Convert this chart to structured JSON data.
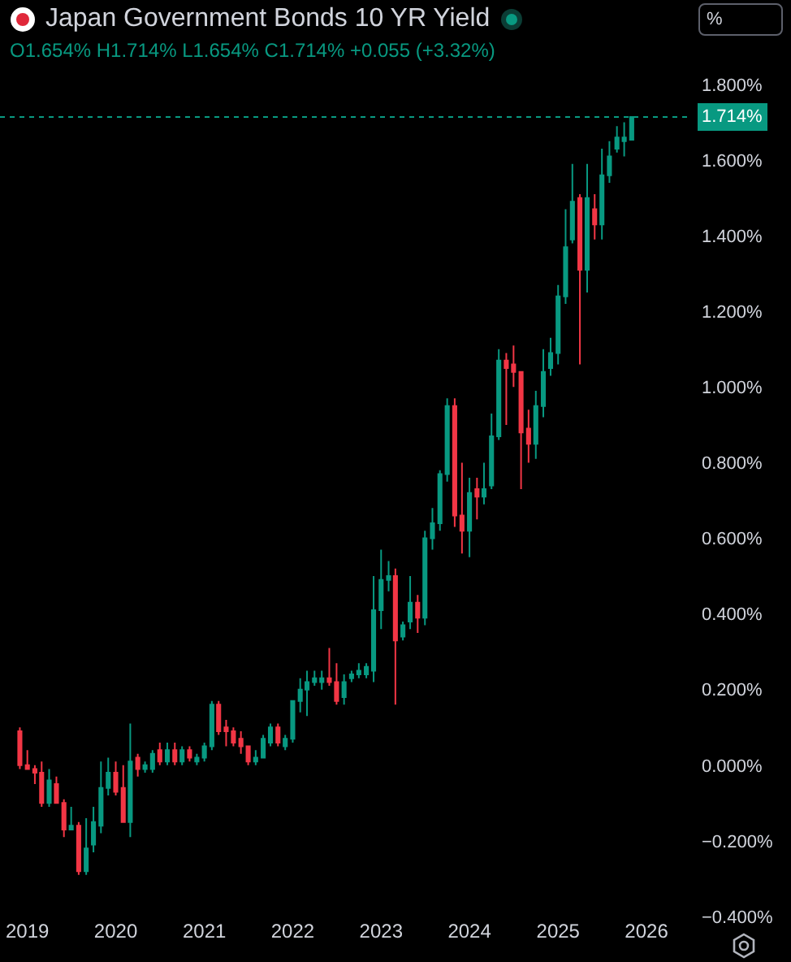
{
  "chart_data": {
    "type": "candlestick",
    "title": "Japan Government Bonds 10 YR Yield",
    "subtitle": "O1.654% H1.714% L1.654% C1.714% +0.055 (+3.32%)",
    "annotations": [
      "%"
    ],
    "x": [
      "2018-12",
      "2019-01",
      "2019-02",
      "2019-03",
      "2019-04",
      "2019-05",
      "2019-06",
      "2019-07",
      "2019-08",
      "2019-09",
      "2019-10",
      "2019-11",
      "2019-12",
      "2020-01",
      "2020-02",
      "2020-03",
      "2020-04",
      "2020-05",
      "2020-06",
      "2020-07",
      "2020-08",
      "2020-09",
      "2020-10",
      "2020-11",
      "2020-12",
      "2021-01",
      "2021-02",
      "2021-03",
      "2021-04",
      "2021-05",
      "2021-06",
      "2021-07",
      "2021-08",
      "2021-09",
      "2021-10",
      "2021-11",
      "2021-12",
      "2022-01",
      "2022-02",
      "2022-03",
      "2022-04",
      "2022-05",
      "2022-06",
      "2022-07",
      "2022-08",
      "2022-09",
      "2022-10",
      "2022-11",
      "2022-12",
      "2023-01",
      "2023-02",
      "2023-03",
      "2023-04",
      "2023-05",
      "2023-06",
      "2023-07",
      "2023-08",
      "2023-09",
      "2023-10",
      "2023-11",
      "2023-12",
      "2024-01",
      "2024-02",
      "2024-03",
      "2024-04",
      "2024-05",
      "2024-06",
      "2024-07",
      "2024-08",
      "2024-09",
      "2024-10",
      "2024-11",
      "2024-12",
      "2025-01",
      "2025-02",
      "2025-03",
      "2025-04",
      "2025-05",
      "2025-06",
      "2025-07",
      "2025-08",
      "2025-09",
      "2025-10",
      "2025-11"
    ],
    "ohlc": [
      [
        0.09,
        0.1,
        -0.01,
        0.0
      ],
      [
        0.0,
        0.04,
        -0.01,
        -0.01
      ],
      [
        -0.01,
        0.0,
        -0.05,
        -0.02
      ],
      [
        -0.02,
        0.01,
        -0.11,
        -0.1
      ],
      [
        -0.1,
        -0.01,
        -0.11,
        -0.04
      ],
      [
        -0.05,
        -0.03,
        -0.1,
        -0.1
      ],
      [
        -0.1,
        -0.09,
        -0.19,
        -0.17
      ],
      [
        -0.17,
        -0.11,
        -0.17,
        -0.16
      ],
      [
        -0.16,
        -0.15,
        -0.29,
        -0.28
      ],
      [
        -0.28,
        -0.14,
        -0.29,
        -0.22
      ],
      [
        -0.21,
        -0.11,
        -0.23,
        -0.15
      ],
      [
        -0.16,
        0.01,
        -0.18,
        -0.06
      ],
      [
        -0.06,
        0.02,
        -0.08,
        -0.02
      ],
      [
        -0.02,
        0.01,
        -0.08,
        -0.07
      ],
      [
        -0.06,
        0.0,
        -0.15,
        -0.15
      ],
      [
        -0.15,
        0.11,
        -0.19,
        0.01
      ],
      [
        0.02,
        0.03,
        -0.03,
        -0.01
      ],
      [
        -0.01,
        0.01,
        -0.02,
        0.0
      ],
      [
        -0.01,
        0.04,
        -0.02,
        0.03
      ],
      [
        0.04,
        0.06,
        0.0,
        0.01
      ],
      [
        0.01,
        0.06,
        0.0,
        0.04
      ],
      [
        0.04,
        0.06,
        0.0,
        0.01
      ],
      [
        0.01,
        0.05,
        0.0,
        0.04
      ],
      [
        0.04,
        0.05,
        0.01,
        0.02
      ],
      [
        0.01,
        0.03,
        0.0,
        0.02
      ],
      [
        0.02,
        0.06,
        0.01,
        0.05
      ],
      [
        0.05,
        0.17,
        0.04,
        0.16
      ],
      [
        0.16,
        0.17,
        0.08,
        0.09
      ],
      [
        0.1,
        0.12,
        0.05,
        0.09
      ],
      [
        0.09,
        0.1,
        0.05,
        0.06
      ],
      [
        0.07,
        0.09,
        0.03,
        0.05
      ],
      [
        0.05,
        0.05,
        0.0,
        0.01
      ],
      [
        0.01,
        0.04,
        0.0,
        0.02
      ],
      [
        0.02,
        0.08,
        0.02,
        0.07
      ],
      [
        0.06,
        0.11,
        0.05,
        0.1
      ],
      [
        0.1,
        0.11,
        0.05,
        0.06
      ],
      [
        0.05,
        0.08,
        0.04,
        0.07
      ],
      [
        0.07,
        0.17,
        0.06,
        0.17
      ],
      [
        0.17,
        0.23,
        0.14,
        0.2
      ],
      [
        0.2,
        0.25,
        0.13,
        0.22
      ],
      [
        0.22,
        0.25,
        0.21,
        0.23
      ],
      [
        0.22,
        0.25,
        0.2,
        0.23
      ],
      [
        0.23,
        0.31,
        0.21,
        0.22
      ],
      [
        0.22,
        0.27,
        0.16,
        0.17
      ],
      [
        0.18,
        0.24,
        0.16,
        0.22
      ],
      [
        0.23,
        0.25,
        0.22,
        0.24
      ],
      [
        0.24,
        0.27,
        0.23,
        0.25
      ],
      [
        0.24,
        0.27,
        0.23,
        0.26
      ],
      [
        0.25,
        0.5,
        0.22,
        0.41
      ],
      [
        0.41,
        0.57,
        0.36,
        0.49
      ],
      [
        0.49,
        0.54,
        0.46,
        0.5
      ],
      [
        0.5,
        0.52,
        0.16,
        0.33
      ],
      [
        0.34,
        0.38,
        0.33,
        0.37
      ],
      [
        0.38,
        0.5,
        0.36,
        0.43
      ],
      [
        0.43,
        0.45,
        0.35,
        0.39
      ],
      [
        0.39,
        0.62,
        0.37,
        0.6
      ],
      [
        0.6,
        0.68,
        0.57,
        0.64
      ],
      [
        0.64,
        0.78,
        0.62,
        0.77
      ],
      [
        0.77,
        0.97,
        0.75,
        0.95
      ],
      [
        0.95,
        0.97,
        0.63,
        0.66
      ],
      [
        0.66,
        0.8,
        0.56,
        0.62
      ],
      [
        0.62,
        0.76,
        0.55,
        0.72
      ],
      [
        0.73,
        0.76,
        0.65,
        0.71
      ],
      [
        0.71,
        0.8,
        0.69,
        0.73
      ],
      [
        0.74,
        0.93,
        0.73,
        0.87
      ],
      [
        0.87,
        1.1,
        0.86,
        1.07
      ],
      [
        1.07,
        1.09,
        0.9,
        1.05
      ],
      [
        1.06,
        1.11,
        1.0,
        1.04
      ],
      [
        1.04,
        1.04,
        0.73,
        0.88
      ],
      [
        0.89,
        0.94,
        0.8,
        0.85
      ],
      [
        0.85,
        0.99,
        0.81,
        0.95
      ],
      [
        0.95,
        1.1,
        0.92,
        1.04
      ],
      [
        1.05,
        1.13,
        1.03,
        1.09
      ],
      [
        1.09,
        1.27,
        1.06,
        1.24
      ],
      [
        1.24,
        1.47,
        1.22,
        1.37
      ],
      [
        1.39,
        1.59,
        1.38,
        1.49
      ],
      [
        1.5,
        1.51,
        1.06,
        1.31
      ],
      [
        1.31,
        1.59,
        1.25,
        1.5
      ],
      [
        1.47,
        1.51,
        1.39,
        1.43
      ],
      [
        1.43,
        1.63,
        1.39,
        1.56
      ],
      [
        1.56,
        1.65,
        1.54,
        1.61
      ],
      [
        1.63,
        1.69,
        1.62,
        1.66
      ],
      [
        1.65,
        1.7,
        1.61,
        1.66
      ],
      [
        1.654,
        1.714,
        1.654,
        1.714
      ]
    ],
    "colors": [
      "#f23645",
      "#f23645",
      "#f23645",
      "#f23645",
      "#089981",
      "#f23645",
      "#f23645",
      "#089981",
      "#f23645",
      "#089981",
      "#089981",
      "#089981",
      "#089981",
      "#f23645",
      "#f23645",
      "#089981",
      "#f23645",
      "#089981",
      "#089981",
      "#f23645",
      "#089981",
      "#f23645",
      "#089981",
      "#f23645",
      "#089981",
      "#089981",
      "#089981",
      "#f23645",
      "#f23645",
      "#f23645",
      "#f23645",
      "#f23645",
      "#089981",
      "#089981",
      "#089981",
      "#f23645",
      "#089981",
      "#089981",
      "#089981",
      "#089981",
      "#089981",
      "#089981",
      "#f23645",
      "#f23645",
      "#089981",
      "#089981",
      "#089981",
      "#089981",
      "#089981",
      "#089981",
      "#089981",
      "#f23645",
      "#089981",
      "#089981",
      "#f23645",
      "#089981",
      "#089981",
      "#089981",
      "#089981",
      "#f23645",
      "#f23645",
      "#089981",
      "#f23645",
      "#089981",
      "#089981",
      "#089981",
      "#f23645",
      "#f23645",
      "#f23645",
      "#f23645",
      "#089981",
      "#089981",
      "#089981",
      "#089981",
      "#089981",
      "#089981",
      "#f23645",
      "#089981",
      "#f23645",
      "#089981",
      "#089981",
      "#089981",
      "#089981",
      "#089981"
    ],
    "xlim": [
      "2018-09-10",
      "2026-07-01"
    ],
    "xticks": [
      {
        "value": "2019-01-01",
        "label": "2019"
      },
      {
        "value": "2020-01-01",
        "label": "2020"
      },
      {
        "value": "2021-01-01",
        "label": "2021"
      },
      {
        "value": "2022-01-01",
        "label": "2022"
      },
      {
        "value": "2023-01-01",
        "label": "2023"
      },
      {
        "value": "2024-01-01",
        "label": "2024"
      },
      {
        "value": "2025-01-01",
        "label": "2025"
      },
      {
        "value": "2026-01-01",
        "label": "2026"
      }
    ],
    "ylim": [
      -0.4,
      1.8
    ],
    "yticks": [
      {
        "value": -0.4,
        "label": "−0.400%"
      },
      {
        "value": -0.2,
        "label": "−0.200%"
      },
      {
        "value": 0,
        "label": "0.000%"
      },
      {
        "value": 0.2,
        "label": "0.200%"
      },
      {
        "value": 0.4,
        "label": "0.400%"
      },
      {
        "value": 0.6,
        "label": "0.600%"
      },
      {
        "value": 0.8,
        "label": "0.800%"
      },
      {
        "value": 1.0,
        "label": "1.000%"
      },
      {
        "value": 1.2,
        "label": "1.200%"
      },
      {
        "value": 1.4,
        "label": "1.400%"
      },
      {
        "value": 1.6,
        "label": "1.600%"
      },
      {
        "value": 1.8,
        "label": "1.800%"
      }
    ],
    "ref_lines": [
      {
        "axis": "y",
        "value": 1.714,
        "label": "1.714%",
        "color": "#089981",
        "line_style": "dotted"
      }
    ]
  }
}
